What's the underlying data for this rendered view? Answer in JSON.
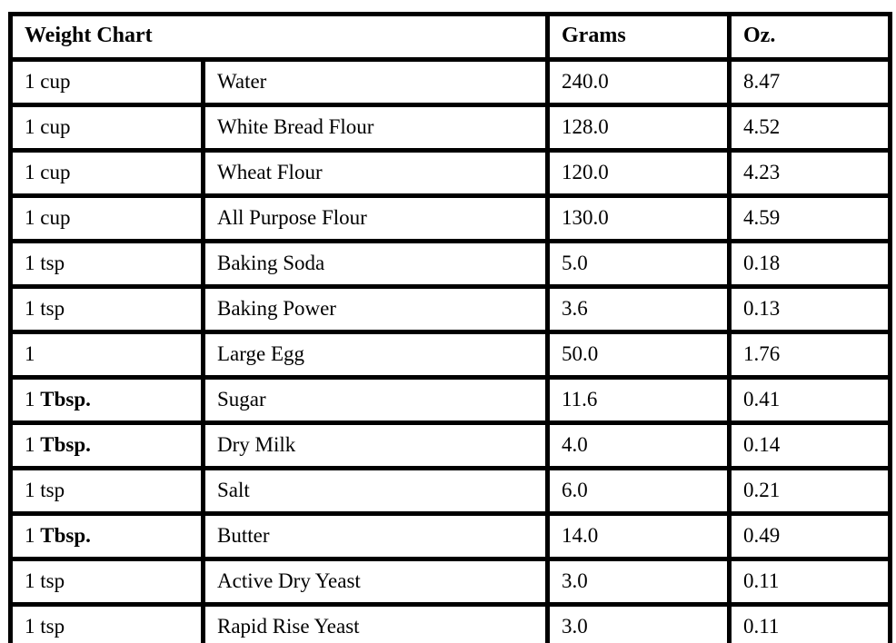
{
  "table": {
    "title": "Weight Chart",
    "columns": {
      "grams": "Grams",
      "oz": "Oz."
    },
    "rows": [
      {
        "measure": "1 cup",
        "measure_bold": "",
        "ingredient": "Water",
        "grams": "240.0",
        "oz": "8.47"
      },
      {
        "measure": "1 cup",
        "measure_bold": "",
        "ingredient": "White Bread Flour",
        "grams": "128.0",
        "oz": "4.52"
      },
      {
        "measure": "1 cup",
        "measure_bold": "",
        "ingredient": "Wheat Flour",
        "grams": "120.0",
        "oz": "4.23"
      },
      {
        "measure": "1 cup",
        "measure_bold": "",
        "ingredient": "All Purpose Flour",
        "grams": "130.0",
        "oz": "4.59"
      },
      {
        "measure": "1 tsp",
        "measure_bold": "",
        "ingredient": "Baking Soda",
        "grams": "5.0",
        "oz": "0.18"
      },
      {
        "measure": "1 tsp",
        "measure_bold": "",
        "ingredient": "Baking Power",
        "grams": "3.6",
        "oz": "0.13"
      },
      {
        "measure": "1",
        "measure_bold": "",
        "ingredient": "Large Egg",
        "grams": "50.0",
        "oz": "1.76"
      },
      {
        "measure": "1 ",
        "measure_bold": "Tbsp.",
        "ingredient": "Sugar",
        "grams": "11.6",
        "oz": "0.41"
      },
      {
        "measure": "1 ",
        "measure_bold": "Tbsp.",
        "ingredient": "Dry Milk",
        "grams": "4.0",
        "oz": "0.14"
      },
      {
        "measure": "1 tsp",
        "measure_bold": "",
        "ingredient": "Salt",
        "grams": "6.0",
        "oz": "0.21"
      },
      {
        "measure": "1 ",
        "measure_bold": "Tbsp.",
        "ingredient": "Butter",
        "grams": "14.0",
        "oz": "0.49"
      },
      {
        "measure": "1 tsp",
        "measure_bold": "",
        "ingredient": "Active Dry Yeast",
        "grams": "3.0",
        "oz": "0.11"
      },
      {
        "measure": "1 tsp",
        "measure_bold": "",
        "ingredient": "Rapid Rise Yeast",
        "grams": "3.0",
        "oz": "0.11"
      }
    ],
    "border_color": "#000000",
    "background_color": "#ffffff"
  }
}
